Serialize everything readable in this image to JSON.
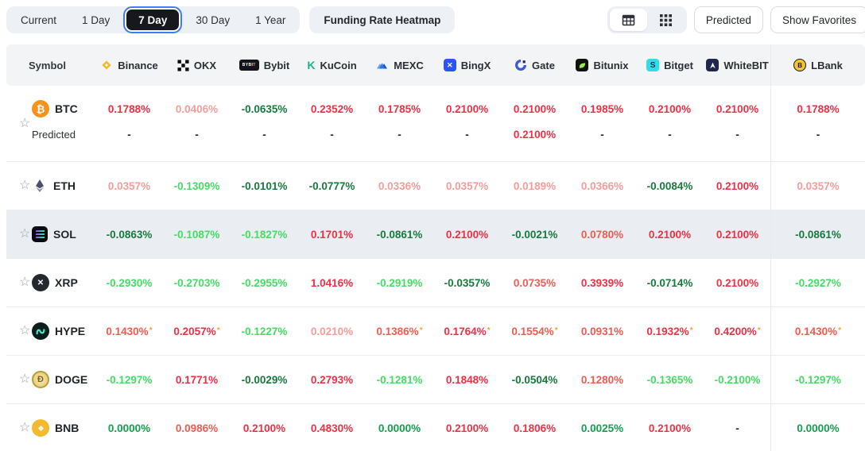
{
  "toolbar": {
    "period_tabs": [
      {
        "label": "Current",
        "active": false
      },
      {
        "label": "1 Day",
        "active": false
      },
      {
        "label": "7 Day",
        "active": true
      },
      {
        "label": "30 Day",
        "active": false
      },
      {
        "label": "1 Year",
        "active": false
      }
    ],
    "heatmap_button": "Funding Rate Heatmap",
    "view_toggle": [
      {
        "icon": "table-view-icon",
        "active": true
      },
      {
        "icon": "heatmap-view-icon",
        "active": false
      }
    ],
    "predicted_button": "Predicted",
    "favorites_button": "Show Favorites"
  },
  "table": {
    "symbol_header": "Symbol",
    "predicted_label": "Predicted",
    "star_icon": "☆",
    "exchanges": [
      {
        "name": "Binance",
        "icon": "binance-icon"
      },
      {
        "name": "OKX",
        "icon": "okx-icon"
      },
      {
        "name": "Bybit",
        "icon": "bybit-icon"
      },
      {
        "name": "KuCoin",
        "icon": "kucoin-icon"
      },
      {
        "name": "MEXC",
        "icon": "mexc-icon"
      },
      {
        "name": "BingX",
        "icon": "bingx-icon"
      },
      {
        "name": "Gate",
        "icon": "gate-icon"
      },
      {
        "name": "Bitunix",
        "icon": "bitunix-icon"
      },
      {
        "name": "Bitget",
        "icon": "bitget-icon"
      },
      {
        "name": "WhiteBIT",
        "icon": "whitebit-icon"
      },
      {
        "name": "LBank",
        "icon": "lbank-icon"
      }
    ],
    "rows": [
      {
        "symbol": "BTC",
        "icon": "btc-icon",
        "highlighted": false,
        "values": [
          [
            "0.1788%",
            "p3"
          ],
          [
            "0.0406%",
            "p1"
          ],
          [
            "-0.0635%",
            "n1"
          ],
          [
            "0.2352%",
            "p3"
          ],
          [
            "0.1785%",
            "p3"
          ],
          [
            "0.2100%",
            "p3"
          ],
          [
            "0.2100%",
            "p3"
          ],
          [
            "0.1985%",
            "p3"
          ],
          [
            "0.2100%",
            "p3"
          ],
          [
            "0.2100%",
            "p3"
          ],
          [
            "0.1788%",
            "p3"
          ]
        ],
        "predicted": [
          [
            "-",
            "neutral"
          ],
          [
            "-",
            "neutral"
          ],
          [
            "-",
            "neutral"
          ],
          [
            "-",
            "neutral"
          ],
          [
            "-",
            "neutral"
          ],
          [
            "-",
            "neutral"
          ],
          [
            "0.2100%",
            "p3"
          ],
          [
            "-",
            "neutral"
          ],
          [
            "-",
            "neutral"
          ],
          [
            "-",
            "neutral"
          ],
          [
            "-",
            "neutral"
          ]
        ]
      },
      {
        "symbol": "ETH",
        "icon": "eth-icon",
        "highlighted": false,
        "values": [
          [
            "0.0357%",
            "p1"
          ],
          [
            "-0.1309%",
            "n3"
          ],
          [
            "-0.0101%",
            "n1"
          ],
          [
            "-0.0777%",
            "n1"
          ],
          [
            "0.0336%",
            "p1"
          ],
          [
            "0.0357%",
            "p1"
          ],
          [
            "0.0189%",
            "p1"
          ],
          [
            "0.0366%",
            "p1"
          ],
          [
            "-0.0084%",
            "n1"
          ],
          [
            "0.2100%",
            "p3"
          ],
          [
            "0.0357%",
            "p1"
          ]
        ]
      },
      {
        "symbol": "SOL",
        "icon": "sol-icon",
        "highlighted": true,
        "values": [
          [
            "-0.0863%",
            "n1"
          ],
          [
            "-0.1087%",
            "n3"
          ],
          [
            "-0.1827%",
            "n3"
          ],
          [
            "0.1701%",
            "p3"
          ],
          [
            "-0.0861%",
            "n1"
          ],
          [
            "0.2100%",
            "p3"
          ],
          [
            "-0.0021%",
            "n1"
          ],
          [
            "0.0780%",
            "p2"
          ],
          [
            "0.2100%",
            "p3"
          ],
          [
            "0.2100%",
            "p3"
          ],
          [
            "-0.0861%",
            "n1"
          ]
        ]
      },
      {
        "symbol": "XRP",
        "icon": "xrp-icon",
        "highlighted": false,
        "values": [
          [
            "-0.2930%",
            "n3"
          ],
          [
            "-0.2703%",
            "n3"
          ],
          [
            "-0.2955%",
            "n3"
          ],
          [
            "1.0416%",
            "p3"
          ],
          [
            "-0.2919%",
            "n3"
          ],
          [
            "-0.0357%",
            "n1"
          ],
          [
            "0.0735%",
            "p2"
          ],
          [
            "0.3939%",
            "p3"
          ],
          [
            "-0.0714%",
            "n1"
          ],
          [
            "0.2100%",
            "p3"
          ],
          [
            "-0.2927%",
            "n3"
          ]
        ]
      },
      {
        "symbol": "HYPE",
        "icon": "hype-icon",
        "highlighted": false,
        "values": [
          [
            "0.1430%",
            "p2",
            "*"
          ],
          [
            "0.2057%",
            "p3",
            "*"
          ],
          [
            "-0.1227%",
            "n3"
          ],
          [
            "0.0210%",
            "p1"
          ],
          [
            "0.1386%",
            "p2",
            "*"
          ],
          [
            "0.1764%",
            "p3",
            "*"
          ],
          [
            "0.1554%",
            "p2",
            "*"
          ],
          [
            "0.0931%",
            "p2"
          ],
          [
            "0.1932%",
            "p3",
            "*"
          ],
          [
            "0.4200%",
            "p3",
            "*"
          ],
          [
            "0.1430%",
            "p2",
            "*"
          ]
        ]
      },
      {
        "symbol": "DOGE",
        "icon": "doge-icon",
        "highlighted": false,
        "values": [
          [
            "-0.1297%",
            "n3"
          ],
          [
            "0.1771%",
            "p3"
          ],
          [
            "-0.0029%",
            "n1"
          ],
          [
            "0.2793%",
            "p3"
          ],
          [
            "-0.1281%",
            "n3"
          ],
          [
            "0.1848%",
            "p3"
          ],
          [
            "-0.0504%",
            "n1"
          ],
          [
            "0.1280%",
            "p2"
          ],
          [
            "-0.1365%",
            "n3"
          ],
          [
            "-0.2100%",
            "n3"
          ],
          [
            "-0.1297%",
            "n3"
          ]
        ]
      },
      {
        "symbol": "BNB",
        "icon": "bnb-icon",
        "highlighted": false,
        "values": [
          [
            "0.0000%",
            "n2"
          ],
          [
            "0.0986%",
            "p2"
          ],
          [
            "0.2100%",
            "p3"
          ],
          [
            "0.4830%",
            "p3"
          ],
          [
            "0.0000%",
            "n2"
          ],
          [
            "0.2100%",
            "p3"
          ],
          [
            "0.1806%",
            "p3"
          ],
          [
            "0.0025%",
            "n2"
          ],
          [
            "0.2100%",
            "p3"
          ],
          [
            "-",
            "neutral"
          ],
          [
            "0.0000%",
            "n2"
          ]
        ]
      }
    ]
  },
  "colors": {
    "tones": {
      "p3": "#ef3044",
      "p2": "#f15b52",
      "p1": "#f79c9a",
      "n1": "#177a3d",
      "n2": "#11a04e",
      "n3": "#43dd63",
      "neutral": "#24292e"
    },
    "asterisk": "#f6a432",
    "pill_bg": "#edf0f4",
    "active_tab_bg": "#16181d",
    "active_tab_ring": "#3c7ef8",
    "header_bg": "#f2f4f6",
    "highlight_row": "#eaeef2"
  }
}
